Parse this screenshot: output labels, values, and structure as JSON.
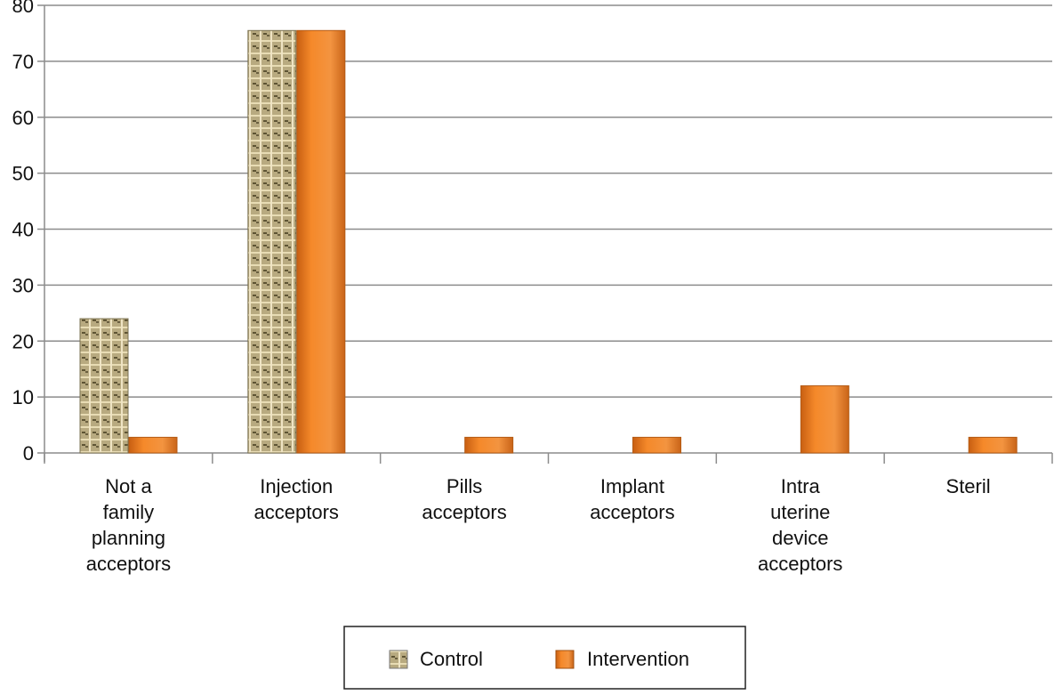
{
  "chart_data": {
    "type": "bar",
    "title": "",
    "xlabel": "",
    "ylabel": "",
    "ylim": [
      0,
      80
    ],
    "yticks": [
      0,
      10,
      20,
      30,
      40,
      50,
      60,
      70,
      80
    ],
    "grid": true,
    "legend_position": "bottom",
    "categories": [
      [
        "Not a",
        "family",
        "planning",
        "acceptors"
      ],
      [
        "Injection",
        "acceptors"
      ],
      [
        "Pills",
        "acceptors"
      ],
      [
        "Implant",
        "acceptors"
      ],
      [
        "Intra",
        "uterine",
        "device",
        "acceptors"
      ],
      [
        "Steril"
      ]
    ],
    "series": [
      {
        "name": "Control",
        "color": "#a89a70",
        "values": [
          24,
          75.5,
          0,
          0,
          0,
          0
        ]
      },
      {
        "name": "Intervention",
        "color": "#f08a2c",
        "values": [
          2.8,
          75.5,
          2.8,
          2.8,
          12,
          2.8
        ]
      }
    ]
  }
}
